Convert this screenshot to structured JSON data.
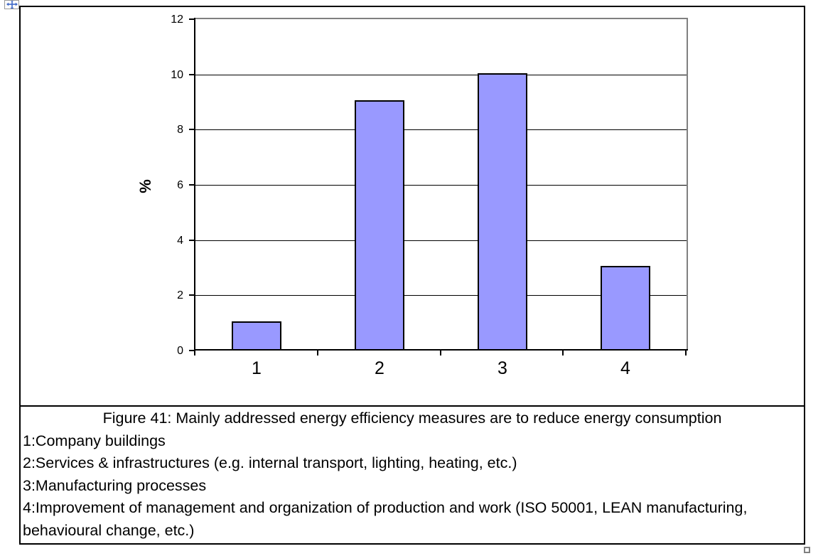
{
  "chart_data": {
    "type": "bar",
    "categories": [
      "1",
      "2",
      "3",
      "4"
    ],
    "values": [
      1,
      9,
      10,
      3
    ],
    "title": "",
    "xlabel": "",
    "ylabel": "%",
    "ylim": [
      0,
      12
    ],
    "ytick_step": 2,
    "yticks": [
      0,
      2,
      4,
      6,
      8,
      10,
      12
    ],
    "grid": true,
    "legend_position": "none",
    "colors": {
      "bar_fill": "#9999FF",
      "bar_border": "#000000",
      "gridline": "#000000",
      "axis": "#000000",
      "plot_border": "#808080"
    }
  },
  "caption": {
    "title": "Figure 41: Mainly addressed energy efficiency measures are to reduce energy consumption",
    "items": [
      "1:Company buildings",
      "2:Services & infrastructures (e.g. internal transport, lighting, heating, etc.)",
      "3:Manufacturing processes",
      "4:Improvement of management and organization of production and work (ISO 50001, LEAN manufacturing, behavioural change, etc.)"
    ]
  },
  "icons": {
    "move_handle": "table-move-handle-icon",
    "resize_handle": "table-resize-handle-icon",
    "handle_arrow_color": "#3E68C8",
    "handle_border_color": "#808080"
  }
}
